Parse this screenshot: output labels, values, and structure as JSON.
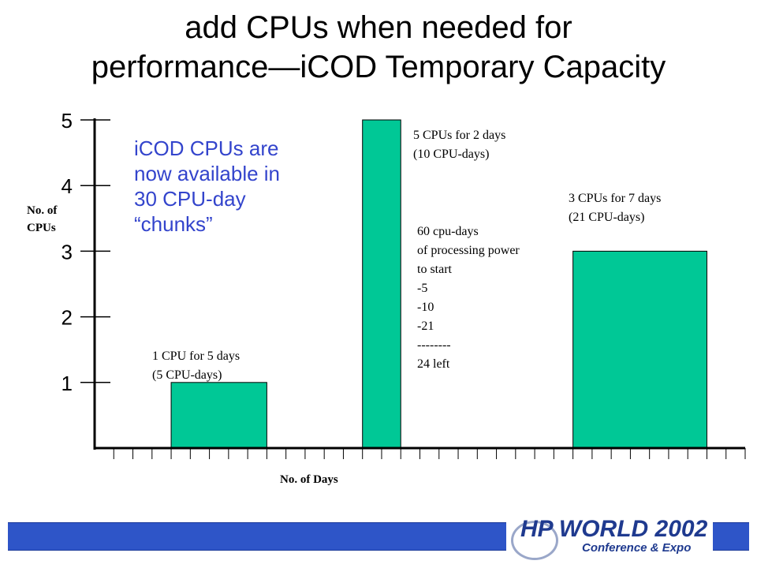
{
  "slide": {
    "title_line1": "add CPUs when needed for",
    "title_line2": "performance—iCOD Temporary Capacity"
  },
  "colors": {
    "bar_fill": "#00c896",
    "callout_text": "#3344cc",
    "footer_bar": "#2e55c8",
    "logo_text": "#1f3a8f"
  },
  "callout": {
    "line1": "iCOD CPUs are",
    "line2": "now available in",
    "line3": "30 CPU-day",
    "line4": "“chunks”"
  },
  "annotations": {
    "bar1": {
      "line1": "1 CPU for 5 days",
      "line2": "(5 CPU-days)"
    },
    "bar2": {
      "line1": "5 CPUs for 2 days",
      "line2": "(10 CPU-days)"
    },
    "bar3": {
      "line1": "3 CPUs for 7 days",
      "line2": "(21 CPU-days)"
    },
    "ledger": {
      "line1": "60 cpu-days",
      "line2": "of processing power",
      "line3": "to start",
      "line4": "-5",
      "line5": "-10",
      "line6": "-21",
      "line7": "--------",
      "line8": "24 left"
    }
  },
  "axes": {
    "ylabel_line1": "No.  of",
    "ylabel_line2": "CPUs",
    "xlabel": "No. of  Days"
  },
  "logo": {
    "brand": "HP WORLD 2002",
    "subtitle": "Conference & Expo"
  },
  "chart_data": {
    "type": "bar",
    "x_unit": "days",
    "y_ticks": [
      1,
      2,
      3,
      4,
      5
    ],
    "ylim": [
      0,
      5
    ],
    "xlim": [
      0,
      34
    ],
    "x_tick_count": 34,
    "bars": [
      {
        "start": 4,
        "days": 5,
        "cpus": 1
      },
      {
        "start": 14,
        "days": 2,
        "cpus": 5
      },
      {
        "start": 25,
        "days": 7,
        "cpus": 3
      }
    ],
    "grid": false,
    "legend": "none"
  }
}
